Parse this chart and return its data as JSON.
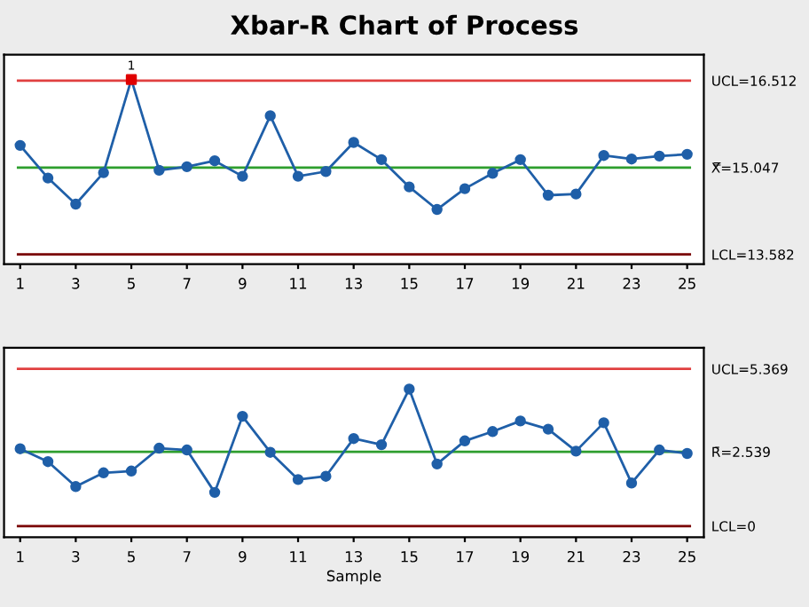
{
  "chart_data": [
    {
      "type": "line",
      "title": "Xbar-R Chart of Process",
      "x": [
        1,
        2,
        3,
        4,
        5,
        6,
        7,
        8,
        9,
        10,
        11,
        12,
        13,
        14,
        15,
        16,
        17,
        18,
        19,
        20,
        21,
        22,
        23,
        24,
        25
      ],
      "series": [
        {
          "color": "#1f5fa8",
          "colors": [
            "#1f5fa8",
            "#1f5fa8",
            "#1f5fa8",
            "#1f5fa8",
            "#e00000",
            "#1f5fa8",
            "#1f5fa8",
            "#1f5fa8",
            "#1f5fa8",
            "#1f5fa8",
            "#1f5fa8",
            "#1f5fa8",
            "#1f5fa8",
            "#1f5fa8",
            "#1f5fa8",
            "#1f5fa8",
            "#1f5fa8",
            "#1f5fa8",
            "#1f5fa8",
            "#1f5fa8",
            "#1f5fa8",
            "#1f5fa8",
            "#1f5fa8",
            "#1f5fa8",
            "#1f5fa8"
          ],
          "values": [
            15.42,
            14.87,
            14.43,
            14.96,
            16.53,
            15.0,
            15.06,
            15.16,
            14.9,
            15.92,
            14.9,
            14.98,
            15.47,
            15.18,
            14.72,
            14.34,
            14.69,
            14.95,
            15.18,
            14.58,
            14.6,
            15.25,
            15.19,
            15.24,
            15.27
          ]
        }
      ],
      "xlim": [
        0.42,
        25.6
      ],
      "xticks": [
        1,
        3,
        5,
        7,
        9,
        11,
        13,
        15,
        17,
        19,
        21,
        23,
        25
      ],
      "ylim": [
        13.42,
        16.95
      ],
      "yticks": [
        {
          "value": 16.512,
          "label": "UCL=16.512"
        },
        {
          "value": 15.047,
          "label": "X̿=15.047"
        },
        {
          "value": 13.582,
          "label": "LCL=13.582"
        }
      ],
      "marker": "circle",
      "grid": false,
      "legend": false,
      "ref_lines": [
        {
          "axis": "y",
          "value": 16.512,
          "color": "#e04040"
        },
        {
          "axis": "y",
          "value": 15.047,
          "color": "#2e9e2e"
        },
        {
          "axis": "y",
          "value": 13.582,
          "color": "#7a0000"
        }
      ],
      "annotations": [
        {
          "text": "1",
          "x": 5,
          "y": 16.53
        }
      ]
    },
    {
      "type": "line",
      "xlabel": "Sample",
      "x": [
        1,
        2,
        3,
        4,
        5,
        6,
        7,
        8,
        9,
        10,
        11,
        12,
        13,
        14,
        15,
        16,
        17,
        18,
        19,
        20,
        21,
        22,
        23,
        24,
        25
      ],
      "series": [
        {
          "color": "#1f5fa8",
          "values": [
            2.64,
            2.2,
            1.35,
            1.82,
            1.88,
            2.66,
            2.6,
            1.15,
            3.75,
            2.52,
            1.59,
            1.7,
            2.99,
            2.78,
            4.68,
            2.12,
            2.91,
            3.23,
            3.59,
            3.31,
            2.56,
            3.53,
            1.47,
            2.6,
            2.48
          ]
        }
      ],
      "xlim": [
        0.42,
        25.6
      ],
      "xticks": [
        1,
        3,
        5,
        7,
        9,
        11,
        13,
        15,
        17,
        19,
        21,
        23,
        25
      ],
      "ylim": [
        -0.38,
        6.09
      ],
      "yticks": [
        {
          "value": 5.369,
          "label": "UCL=5.369"
        },
        {
          "value": 2.539,
          "label": "R̄=2.539"
        },
        {
          "value": 0,
          "label": "LCL=0"
        }
      ],
      "marker": "circle",
      "grid": false,
      "legend": false,
      "ref_lines": [
        {
          "axis": "y",
          "value": 5.369,
          "color": "#e04040"
        },
        {
          "axis": "y",
          "value": 2.539,
          "color": "#2e9e2e"
        },
        {
          "axis": "y",
          "value": 0,
          "color": "#7a0000"
        }
      ]
    }
  ]
}
